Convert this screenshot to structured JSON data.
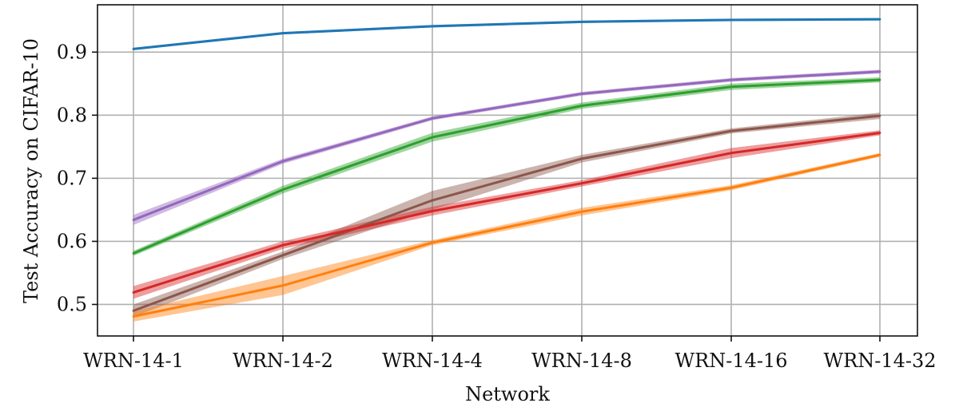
{
  "chart_data": {
    "type": "line",
    "title": "",
    "xlabel": "Network",
    "ylabel": "Test Accuracy on CIFAR-10",
    "categories": [
      "WRN-14-1",
      "WRN-14-2",
      "WRN-14-4",
      "WRN-14-8",
      "WRN-14-16",
      "WRN-14-32"
    ],
    "ylim": [
      0.45,
      0.975
    ],
    "yticks": [
      0.5,
      0.6,
      0.7,
      0.8,
      0.9
    ],
    "ytick_labels": [
      "0.5",
      "0.6",
      "0.7",
      "0.8",
      "0.9"
    ],
    "grid": true,
    "legend": "none",
    "series": [
      {
        "name": "blue",
        "color": "#1f77b4",
        "values": [
          0.905,
          0.93,
          0.941,
          0.948,
          0.951,
          0.952
        ],
        "band": [
          0.002,
          0.002,
          0.002,
          0.002,
          0.002,
          0.002
        ]
      },
      {
        "name": "purple",
        "color": "#9467bd",
        "values": [
          0.634,
          0.727,
          0.795,
          0.834,
          0.856,
          0.869
        ],
        "band": [
          0.008,
          0.004,
          0.003,
          0.003,
          0.003,
          0.003
        ]
      },
      {
        "name": "green",
        "color": "#2ca02c",
        "values": [
          0.581,
          0.682,
          0.765,
          0.815,
          0.845,
          0.856
        ],
        "band": [
          0.004,
          0.006,
          0.007,
          0.005,
          0.005,
          0.004
        ]
      },
      {
        "name": "brown",
        "color": "#8c564b",
        "values": [
          0.49,
          0.578,
          0.665,
          0.731,
          0.775,
          0.799
        ],
        "band": [
          0.01,
          0.006,
          0.015,
          0.006,
          0.004,
          0.005
        ]
      },
      {
        "name": "red",
        "color": "#d62728",
        "values": [
          0.519,
          0.594,
          0.648,
          0.692,
          0.74,
          0.772
        ],
        "band": [
          0.01,
          0.006,
          0.007,
          0.005,
          0.008,
          0.004
        ]
      },
      {
        "name": "orange",
        "color": "#ff7f0e",
        "values": [
          0.481,
          0.53,
          0.598,
          0.647,
          0.685,
          0.737
        ],
        "band": [
          0.008,
          0.015,
          0.004,
          0.006,
          0.004,
          0.003
        ]
      }
    ]
  }
}
